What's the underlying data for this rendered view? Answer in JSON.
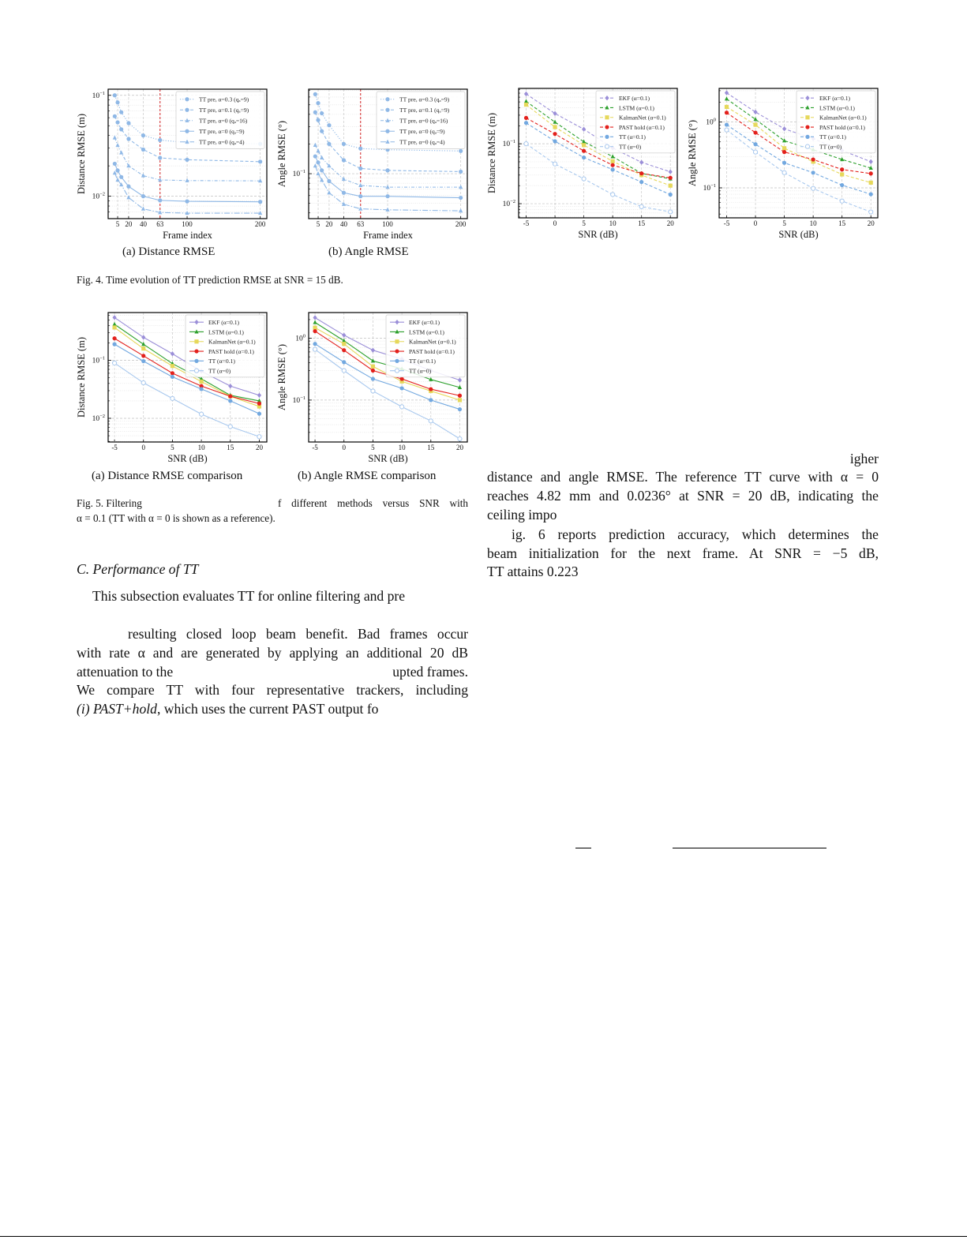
{
  "fig4": {
    "sub_a": "(a) Distance RMSE",
    "sub_b": "(b) Angle RMSE",
    "caption": "Fig. 4.  Time evolution of TT prediction RMSE at SNR = 15 dB."
  },
  "fig5": {
    "sub_a": "(a) Distance RMSE comparison",
    "sub_b": "(b) Angle RMSE comparison",
    "caption_l1_a": "Fig. 5.  Filtering",
    "caption_l1_b": "f different methods versus SNR with",
    "caption_l2": "α = 0.1 (TT with α = 0 is shown as a reference)."
  },
  "left_text": {
    "heading": "C.  Performance of TT",
    "lines": [
      "This subsection evaluates TT for online filtering and pre",
      "resulting closed loop beam benefit. Bad frames occur",
      "with rate α and are generated by applying an additional 20 dB",
      "attenuation to the",
      "upted frames.",
      "We compare TT with four representative trackers, including",
      "(i) PAST+hold",
      ", which uses the current PAST output fo"
    ]
  },
  "right_text": {
    "lines": [
      "igher",
      "distance and angle RMSE. The reference TT curve with α = 0",
      "reaches 4.82 mm and 0.0236° at SNR = 20 dB, indicating the",
      "ceiling impo",
      "ig. 6 reports prediction accuracy, which determines the",
      "beam initialization for the next frame. At SNR = −5 dB,",
      "TT attains 0.223"
    ]
  },
  "chart_data": [
    {
      "type": "line",
      "panel": "Fig. 4(a)",
      "xlabel": "Frame index",
      "ylabel": "Distance RMSE (m)",
      "yscale": "log",
      "ylim": [
        0.006,
        0.115
      ],
      "xlim": [
        -8,
        209
      ],
      "xticks": [
        5,
        20,
        40,
        63,
        100,
        200
      ],
      "grid": true,
      "legend": "top-right",
      "vline": {
        "x": 63,
        "color": "#d62728"
      },
      "x": [
        1,
        5,
        10,
        20,
        40,
        63,
        100,
        200
      ],
      "series": [
        {
          "name": "TT pre, α=0.3 (qₐ=9)",
          "color": "#8fb8e6",
          "marker": "circle",
          "linestyle": "dotted",
          "values": [
            0.1,
            0.085,
            0.068,
            0.053,
            0.04,
            0.036,
            0.034,
            0.033
          ]
        },
        {
          "name": "TT pre, α=0.1 (qₐ=9)",
          "color": "#8fb8e6",
          "marker": "circle",
          "linestyle": "dashed",
          "values": [
            0.062,
            0.054,
            0.046,
            0.037,
            0.029,
            0.024,
            0.023,
            0.022
          ]
        },
        {
          "name": "TT pre, α=0 (qₐ=16)",
          "color": "#8fb8e6",
          "marker": "triangle",
          "linestyle": "dashdot",
          "values": [
            0.038,
            0.032,
            0.027,
            0.02,
            0.016,
            0.0145,
            0.0143,
            0.0142
          ]
        },
        {
          "name": "TT pre, α=0 (qₐ=9)",
          "color": "#8fb8e6",
          "marker": "circle",
          "linestyle": "solid",
          "values": [
            0.021,
            0.018,
            0.0155,
            0.0125,
            0.01,
            0.0091,
            0.0089,
            0.0088
          ]
        },
        {
          "name": "TT pre, α=0 (qₐ=4)",
          "color": "#8fb8e6",
          "marker": "triangle",
          "linestyle": "longdashdot",
          "values": [
            0.017,
            0.0145,
            0.013,
            0.0097,
            0.0075,
            0.0069,
            0.0068,
            0.0068
          ]
        }
      ]
    },
    {
      "type": "line",
      "panel": "Fig. 4(b)",
      "xlabel": "Frame index",
      "ylabel": "Angle RMSE (°)",
      "yscale": "log",
      "ylim": [
        0.035,
        0.72
      ],
      "xlim": [
        -8,
        209
      ],
      "xticks": [
        5,
        20,
        40,
        63,
        100,
        200
      ],
      "grid": true,
      "legend": "top-right",
      "vline": {
        "x": 63,
        "color": "#d62728"
      },
      "x": [
        1,
        5,
        10,
        20,
        40,
        63,
        100,
        200
      ],
      "series": [
        {
          "name": "TT pre, α=0.3 (qₐ=9)",
          "color": "#8fb8e6",
          "marker": "circle",
          "linestyle": "dotted",
          "values": [
            0.64,
            0.52,
            0.41,
            0.31,
            0.2,
            0.18,
            0.175,
            0.17
          ]
        },
        {
          "name": "TT pre, α=0.1 (qₐ=9)",
          "color": "#8fb8e6",
          "marker": "circle",
          "linestyle": "dashed",
          "values": [
            0.42,
            0.35,
            0.27,
            0.2,
            0.137,
            0.113,
            0.108,
            0.105
          ]
        },
        {
          "name": "TT pre, α=0 (qₐ=16)",
          "color": "#8fb8e6",
          "marker": "triangle",
          "linestyle": "dashdot",
          "values": [
            0.195,
            0.17,
            0.145,
            0.12,
            0.088,
            0.076,
            0.073,
            0.073
          ]
        },
        {
          "name": "TT pre, α=0 (qₐ=9)",
          "color": "#8fb8e6",
          "marker": "circle",
          "linestyle": "solid",
          "values": [
            0.15,
            0.13,
            0.108,
            0.084,
            0.064,
            0.059,
            0.059,
            0.057
          ]
        },
        {
          "name": "TT pre, α=0 (qₐ=4)",
          "color": "#8fb8e6",
          "marker": "triangle",
          "linestyle": "longdashdot",
          "values": [
            0.12,
            0.1,
            0.086,
            0.064,
            0.049,
            0.044,
            0.043,
            0.042
          ]
        }
      ]
    },
    {
      "type": "line",
      "panel": "Fig. 6(a)",
      "xlabel": "SNR (dB)",
      "ylabel": "Distance RMSE (m)",
      "yscale": "log",
      "ylim": [
        0.0058,
        0.84
      ],
      "xlim": [
        -6.3,
        21.2
      ],
      "xticks": [
        -5,
        0,
        5,
        10,
        15,
        20
      ],
      "grid": true,
      "legend": "top-right",
      "x": [
        -5,
        0,
        5,
        10,
        15,
        20
      ],
      "series": [
        {
          "name": "EKF (α=0.1)",
          "color": "#9b8fd8",
          "marker": "diamond",
          "linestyle": "dashed",
          "values": [
            0.68,
            0.32,
            0.175,
            0.085,
            0.049,
            0.034
          ]
        },
        {
          "name": "LSTM (α=0.1)",
          "color": "#2ca02c",
          "marker": "triangle",
          "linestyle": "dashed",
          "values": [
            0.51,
            0.23,
            0.108,
            0.061,
            0.032,
            0.026
          ]
        },
        {
          "name": "KalmanNet (α=0.1)",
          "color": "#e6d85a",
          "marker": "square",
          "linestyle": "dashed",
          "values": [
            0.45,
            0.19,
            0.095,
            0.051,
            0.03,
            0.02
          ]
        },
        {
          "name": "PAST hold (α=0.1)",
          "color": "#e3201c",
          "marker": "circle",
          "linestyle": "dashed",
          "values": [
            0.27,
            0.146,
            0.076,
            0.044,
            0.032,
            0.027
          ]
        },
        {
          "name": "TT (α=0.1)",
          "color": "#72a8e0",
          "marker": "circle",
          "linestyle": "dashed",
          "values": [
            0.223,
            0.11,
            0.059,
            0.037,
            0.023,
            0.0142
          ]
        },
        {
          "name": "TT (α=0)",
          "color": "#a8c8ee",
          "marker": "hollow-circle",
          "linestyle": "dashed",
          "values": [
            0.1,
            0.046,
            0.026,
            0.0142,
            0.0089,
            0.0073
          ]
        }
      ]
    },
    {
      "type": "line",
      "panel": "Fig. 6(b)",
      "xlabel": "SNR (dB)",
      "ylabel": "Angle RMSE (°)",
      "yscale": "log",
      "ylim": [
        0.035,
        3.25
      ],
      "xlim": [
        -6.3,
        21.2
      ],
      "xticks": [
        -5,
        0,
        5,
        10,
        15,
        20
      ],
      "grid": true,
      "legend": "top-right",
      "x": [
        -5,
        0,
        5,
        10,
        15,
        20
      ],
      "series": [
        {
          "name": "EKF (α=0.1)",
          "color": "#9b8fd8",
          "marker": "diamond",
          "linestyle": "dashed",
          "values": [
            2.78,
            1.42,
            0.79,
            0.56,
            0.37,
            0.25
          ]
        },
        {
          "name": "LSTM (α=0.1)",
          "color": "#2ca02c",
          "marker": "triangle",
          "linestyle": "dashed",
          "values": [
            2.25,
            1.1,
            0.52,
            0.38,
            0.27,
            0.2
          ]
        },
        {
          "name": "KalmanNet (α=0.1)",
          "color": "#e6d85a",
          "marker": "square",
          "linestyle": "dashed",
          "values": [
            1.7,
            0.91,
            0.4,
            0.25,
            0.16,
            0.12
          ]
        },
        {
          "name": "PAST hold (α=0.1)",
          "color": "#e3201c",
          "marker": "circle",
          "linestyle": "dashed",
          "values": [
            1.39,
            0.69,
            0.35,
            0.27,
            0.19,
            0.165
          ]
        },
        {
          "name": "TT (α=0.1)",
          "color": "#72a8e0",
          "marker": "circle",
          "linestyle": "dashed",
          "values": [
            0.91,
            0.46,
            0.24,
            0.17,
            0.11,
            0.08
          ]
        },
        {
          "name": "TT (α=0)",
          "color": "#a8c8ee",
          "marker": "hollow-circle",
          "linestyle": "dashed",
          "values": [
            0.76,
            0.35,
            0.17,
            0.098,
            0.063,
            0.043
          ]
        }
      ]
    },
    {
      "type": "line",
      "panel": "Fig. 5(a)",
      "xlabel": "SNR (dB)",
      "ylabel": "Distance RMSE (m)",
      "yscale": "log",
      "ylim": [
        0.0039,
        0.67
      ],
      "xlim": [
        -6.1,
        21.3
      ],
      "xticks": [
        -5,
        0,
        5,
        10,
        15,
        20
      ],
      "grid": true,
      "legend": "top-right",
      "x": [
        -5,
        0,
        5,
        10,
        15,
        20
      ],
      "series": [
        {
          "name": "EKF (α=0.1)",
          "color": "#9b8fd8",
          "marker": "diamond",
          "linestyle": "solid",
          "values": [
            0.55,
            0.25,
            0.13,
            0.065,
            0.036,
            0.025
          ]
        },
        {
          "name": "LSTM (α=0.1)",
          "color": "#2ca02c",
          "marker": "triangle",
          "linestyle": "solid",
          "values": [
            0.42,
            0.19,
            0.088,
            0.048,
            0.025,
            0.02
          ]
        },
        {
          "name": "KalmanNet (α=0.1)",
          "color": "#e6d85a",
          "marker": "square",
          "linestyle": "solid",
          "values": [
            0.37,
            0.16,
            0.08,
            0.043,
            0.024,
            0.016
          ]
        },
        {
          "name": "PAST hold (α=0.1)",
          "color": "#e3201c",
          "marker": "circle",
          "linestyle": "solid",
          "values": [
            0.24,
            0.12,
            0.06,
            0.036,
            0.024,
            0.018
          ]
        },
        {
          "name": "TT (α=0.1)",
          "color": "#72a8e0",
          "marker": "circle",
          "linestyle": "solid",
          "values": [
            0.19,
            0.097,
            0.052,
            0.032,
            0.02,
            0.012
          ]
        },
        {
          "name": "TT (α=0)",
          "color": "#a8c8ee",
          "marker": "hollow-circle",
          "linestyle": "solid",
          "values": [
            0.09,
            0.041,
            0.022,
            0.0118,
            0.0072,
            0.00482
          ]
        }
      ]
    },
    {
      "type": "line",
      "panel": "Fig. 5(b)",
      "xlabel": "SNR (dB)",
      "ylabel": "Angle RMSE (°)",
      "yscale": "log",
      "ylim": [
        0.021,
        2.6
      ],
      "xlim": [
        -6.1,
        21.3
      ],
      "xticks": [
        -5,
        0,
        5,
        10,
        15,
        20
      ],
      "grid": true,
      "legend": "top-right",
      "x": [
        -5,
        0,
        5,
        10,
        15,
        20
      ],
      "series": [
        {
          "name": "EKF (α=0.1)",
          "color": "#9b8fd8",
          "marker": "diamond",
          "linestyle": "solid",
          "values": [
            2.15,
            1.12,
            0.64,
            0.46,
            0.3,
            0.21
          ]
        },
        {
          "name": "LSTM (α=0.1)",
          "color": "#2ca02c",
          "marker": "triangle",
          "linestyle": "solid",
          "values": [
            1.8,
            0.91,
            0.43,
            0.32,
            0.215,
            0.16
          ]
        },
        {
          "name": "KalmanNet (α=0.1)",
          "color": "#e6d85a",
          "marker": "square",
          "linestyle": "solid",
          "values": [
            1.48,
            0.81,
            0.35,
            0.2,
            0.14,
            0.1
          ]
        },
        {
          "name": "PAST hold (α=0.1)",
          "color": "#e3201c",
          "marker": "circle",
          "linestyle": "solid",
          "values": [
            1.3,
            0.64,
            0.3,
            0.22,
            0.15,
            0.118
          ]
        },
        {
          "name": "TT (α=0.1)",
          "color": "#72a8e0",
          "marker": "circle",
          "linestyle": "solid",
          "values": [
            0.81,
            0.41,
            0.22,
            0.155,
            0.1,
            0.071
          ]
        },
        {
          "name": "TT (α=0)",
          "color": "#a8c8ee",
          "marker": "hollow-circle",
          "linestyle": "solid",
          "values": [
            0.66,
            0.3,
            0.14,
            0.078,
            0.046,
            0.0236
          ]
        }
      ]
    }
  ]
}
